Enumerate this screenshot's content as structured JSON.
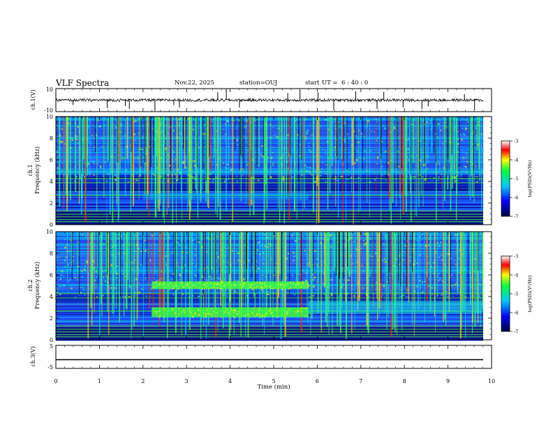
{
  "header": {
    "title": "VLF Spectra",
    "date": "Nov.22, 2025",
    "station": "station=OUJ",
    "start_prefix": "start",
    "start_ut": "UT =  6 : 40 : 0"
  },
  "chart_data": [
    {
      "type": "line",
      "panel": "ch.1 waveform",
      "ylabel": "ch.1(V)",
      "ylim": [
        -10,
        10
      ],
      "y_tick_labels": [
        "10",
        "-10"
      ],
      "baseline": 0,
      "xlim": [
        0,
        10
      ]
    },
    {
      "type": "heatmap",
      "panel": "ch.1 spectrogram",
      "ylabel": "ch.1",
      "ylabel2": "Frequency (kHz)",
      "ylim": [
        0,
        10
      ],
      "y_tick_labels": [
        "0",
        "2",
        "4",
        "6",
        "8",
        "10"
      ],
      "xlim": [
        0,
        10
      ],
      "colorbar": {
        "label": "log(PSD)(V²/Hz)",
        "range": [
          -7,
          -3
        ],
        "tick_labels": [
          "-3",
          "-4",
          "-5",
          "-6",
          "-7"
        ]
      }
    },
    {
      "type": "heatmap",
      "panel": "ch.2 spectrogram",
      "ylabel": "ch.2",
      "ylabel2": "Frequency (kHz)",
      "ylim": [
        0,
        10
      ],
      "y_tick_labels": [
        "0",
        "2",
        "4",
        "6",
        "8",
        "10"
      ],
      "xlim": [
        0,
        10
      ],
      "features": [
        {
          "t_start": 2.2,
          "t_end": 5.8,
          "f_low": 4.7,
          "f_high": 5.4
        },
        {
          "t_start": 2.2,
          "t_end": 5.8,
          "f_low": 2.1,
          "f_high": 3.0
        }
      ],
      "colorbar": {
        "label": "log(PSD)(V²/Hz)",
        "range": [
          -7,
          -3
        ],
        "tick_labels": [
          "-3",
          "-4",
          "-5",
          "-6",
          "-7"
        ]
      }
    },
    {
      "type": "line",
      "panel": "ch.3 waveform",
      "ylabel": "ch.3(V)",
      "ylim": [
        -5,
        5
      ],
      "y_tick_labels": [
        "5",
        "-5"
      ],
      "baseline": -1.2,
      "xlim": [
        0,
        10
      ]
    }
  ],
  "xaxis": {
    "label": "Time (min)",
    "tick_labels": [
      "0",
      "1",
      "2",
      "3",
      "4",
      "5",
      "6",
      "7",
      "8",
      "9",
      "10"
    ]
  }
}
